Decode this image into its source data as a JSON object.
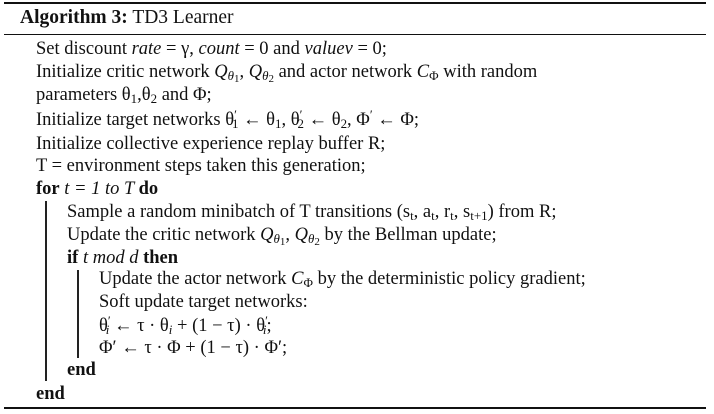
{
  "caption": {
    "label": "Algorithm 3:",
    "title": "TD3 Learner"
  },
  "lines": {
    "l1": {
      "a": "Set discount ",
      "rate": "rate",
      "b": " = γ, ",
      "count": "count",
      "c": " = 0 and ",
      "valuev": "valuev",
      "d": " = 0;"
    },
    "l2": {
      "a": "Initialize critic network ",
      "q1": "Q",
      "s1": "θ",
      "s1n": "1",
      "sep": ", ",
      "q2": "Q",
      "s2": "θ",
      "s2n": "2",
      "b": " and actor network ",
      "c": "C",
      "cs": "Φ",
      "d": " with random"
    },
    "l3": {
      "a": "parameters θ",
      "s1": "1",
      "b": ",θ",
      "s2": "2",
      "c": " and Φ;"
    },
    "l4": {
      "a": "Initialize target networks θ",
      "p1": "′",
      "s1": "1",
      "b": " ← θ",
      "s1b": "1",
      "c": ", θ",
      "p2": "′",
      "s2": "2",
      "d": " ← θ",
      "s2b": "2",
      "e": ", Φ",
      "p3": "′",
      "f": " ← Φ;"
    },
    "l5": "Initialize collective experience replay buffer R;",
    "l6": "T = environment steps taken this generation;",
    "l7": {
      "for": "for",
      "t": " t = 1 to T ",
      "do": "do"
    },
    "l8": {
      "a": "Sample a random minibatch of T transitions (s",
      "st": "t",
      "b": ", a",
      "at": "t",
      "c": ", r",
      "rt": "t",
      "d": ", s",
      "st1": "t+1",
      "e": ") from R;"
    },
    "l9": {
      "a": "Update the critic network ",
      "q1": "Q",
      "s1": "θ",
      "s1n": "1",
      "sep": ", ",
      "q2": "Q",
      "s2": "θ",
      "s2n": "2",
      "b": " by the Bellman update;"
    },
    "l10": {
      "if": "if",
      "cond": " t mod d ",
      "then": "then"
    },
    "l11": {
      "a": "Update the actor network ",
      "c": "C",
      "cs": "Φ",
      "b": " by the deterministic policy gradient;"
    },
    "l12": "Soft update target networks:",
    "l13": {
      "a": "θ",
      "ap": "′",
      "as": "i",
      "b": " ← τ · θ",
      "bs": "i",
      "c": " + (1 − τ) · θ",
      "cp": "′",
      "cs": "i",
      "d": ";"
    },
    "l14": {
      "a": "Φ′ ← τ · Φ + (1 − τ) · Φ′;"
    },
    "l15": "end",
    "l16": "end"
  }
}
